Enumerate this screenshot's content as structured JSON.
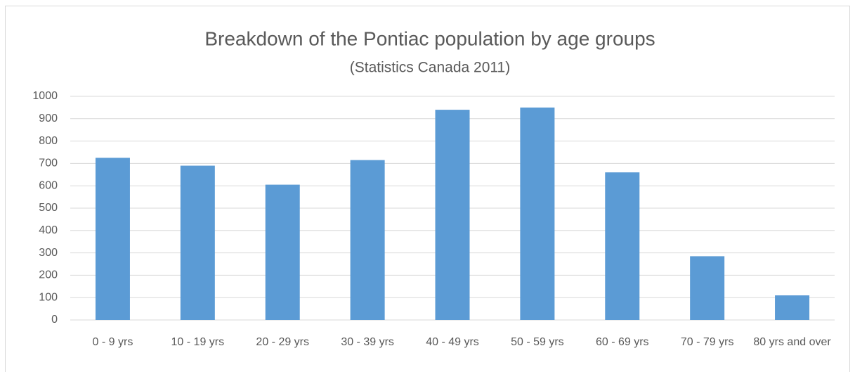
{
  "chart_data": {
    "type": "bar",
    "title": "Breakdown of the Pontiac population by age groups",
    "subtitle": "(Statistics Canada 2011)",
    "categories": [
      "0 - 9 yrs",
      "10 - 19 yrs",
      "20 - 29 yrs",
      "30 - 39 yrs",
      "40 - 49 yrs",
      "50 - 59 yrs",
      "60 - 69 yrs",
      "70 - 79 yrs",
      "80 yrs and over"
    ],
    "values": [
      725,
      690,
      605,
      715,
      940,
      950,
      660,
      285,
      110
    ],
    "color": "#5b9bd5",
    "ylim": [
      0,
      1000
    ],
    "yticks": [
      0,
      100,
      200,
      300,
      400,
      500,
      600,
      700,
      800,
      900,
      1000
    ],
    "grid": true
  }
}
